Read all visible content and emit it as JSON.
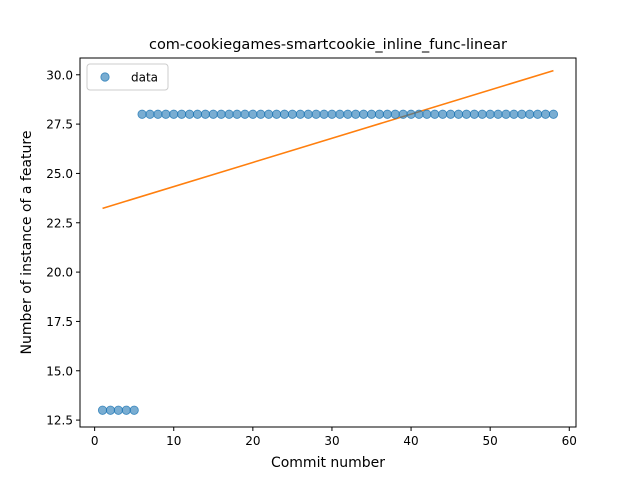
{
  "chart_data": {
    "type": "scatter",
    "title": "com-cookiegames-smartcookie_inline_func-linear",
    "xlabel": "Commit number",
    "ylabel": "Number of instance of a feature",
    "xlim": [
      -1.85,
      60.85
    ],
    "ylim": [
      12.15,
      30.85
    ],
    "xticks": [
      0,
      10,
      20,
      30,
      40,
      50,
      60
    ],
    "yticks": [
      12.5,
      15.0,
      17.5,
      20.0,
      22.5,
      25.0,
      27.5,
      30.0
    ],
    "ytick_labels": [
      "12.5",
      "15.0",
      "17.5",
      "20.0",
      "22.5",
      "25.0",
      "27.5",
      "30.0"
    ],
    "grid": false,
    "legend": {
      "position": "top-left",
      "entries": [
        "data"
      ]
    },
    "series": [
      {
        "name": "data",
        "kind": "scatter",
        "color": "#1f77b4",
        "x": [
          1,
          2,
          3,
          4,
          5,
          6,
          7,
          8,
          9,
          10,
          11,
          12,
          13,
          14,
          15,
          16,
          17,
          18,
          19,
          20,
          21,
          22,
          23,
          24,
          25,
          26,
          27,
          28,
          29,
          30,
          31,
          32,
          33,
          34,
          35,
          36,
          37,
          38,
          39,
          40,
          41,
          42,
          43,
          44,
          45,
          46,
          47,
          48,
          49,
          50,
          51,
          52,
          53,
          54,
          55,
          56,
          57,
          58
        ],
        "y": [
          13,
          13,
          13,
          13,
          13,
          28,
          28,
          28,
          28,
          28,
          28,
          28,
          28,
          28,
          28,
          28,
          28,
          28,
          28,
          28,
          28,
          28,
          28,
          28,
          28,
          28,
          28,
          28,
          28,
          28,
          28,
          28,
          28,
          28,
          28,
          28,
          28,
          28,
          28,
          28,
          28,
          28,
          28,
          28,
          28,
          28,
          28,
          28,
          28,
          28,
          28,
          28,
          28,
          28,
          28,
          28,
          28,
          28
        ]
      },
      {
        "kind": "line",
        "color": "#ff7f0e",
        "x": [
          1,
          58
        ],
        "y": [
          23.23,
          30.21
        ]
      }
    ]
  }
}
